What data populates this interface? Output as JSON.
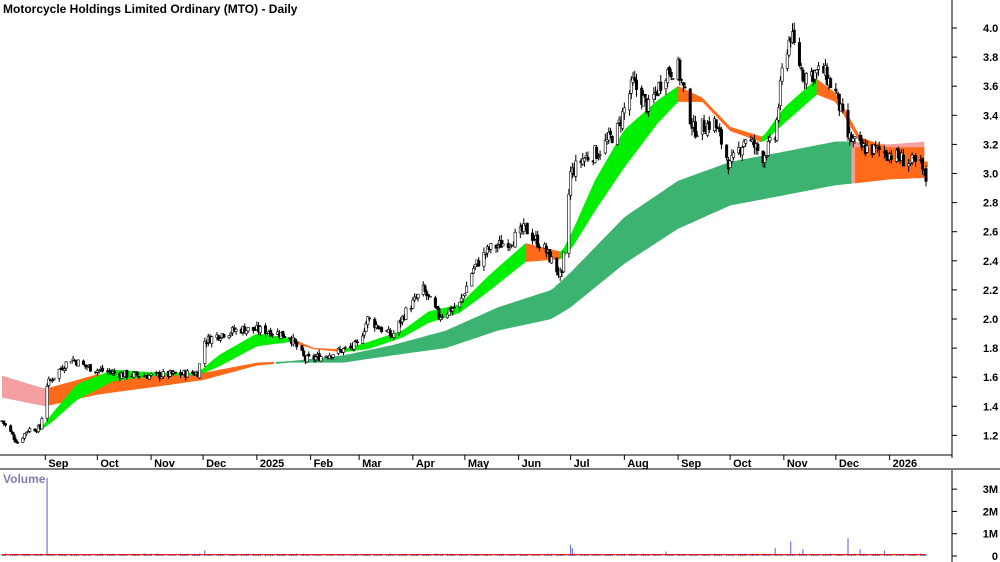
{
  "title": "Motorcycle Holdings Limited Ordinary (MTO) - Daily",
  "volume_label": "Volume",
  "colors": {
    "background": "#ffffff",
    "axis": "#000000",
    "candle": "#000000",
    "bull_short": "#00ee00",
    "bear_short": "#ff6b1a",
    "bull_long": "#3cb371",
    "bear_long_fill": "#ff6b1a",
    "bear_long_ribbon": "#f4a0a0",
    "volume_bar": "#5b5bd6",
    "volume_avg": "#d40000"
  },
  "chart_data": [
    {
      "type": "candlestick",
      "title": "Motorcycle Holdings Limited Ordinary (MTO) - Daily",
      "xlabel": "",
      "ylabel": "",
      "ylim": [
        1.05,
        4.05
      ],
      "y_ticks": [
        "1.2",
        "1.4",
        "1.6",
        "1.8",
        "2.0",
        "2.2",
        "2.4",
        "2.6",
        "2.8",
        "3.0",
        "3.2",
        "3.4",
        "3.6",
        "3.8",
        "4.0"
      ],
      "x_tick_labels": [
        "Sep",
        "Oct",
        "Nov",
        "Dec",
        "2025",
        "Feb",
        "Mar",
        "Apr",
        "May",
        "Jun",
        "Jul",
        "Aug",
        "Sep",
        "Oct",
        "Nov",
        "Dec",
        "2026"
      ],
      "x_tick_dates": [
        "2024-09-01",
        "2024-10-01",
        "2024-11-01",
        "2024-12-01",
        "2025-01-01",
        "2025-02-01",
        "2025-03-01",
        "2025-04-01",
        "2025-05-01",
        "2025-06-01",
        "2025-07-01",
        "2025-08-01",
        "2025-09-01",
        "2025-10-01",
        "2025-11-01",
        "2025-12-01",
        "2026-01-01"
      ],
      "x_range": [
        "2024-08-07",
        "2026-01-22"
      ],
      "close_path": [
        [
          "2024-08-07",
          1.3
        ],
        [
          "2024-08-12",
          1.22
        ],
        [
          "2024-08-16",
          1.15
        ],
        [
          "2024-08-22",
          1.24
        ],
        [
          "2024-08-29",
          1.25
        ],
        [
          "2024-09-02",
          1.55
        ],
        [
          "2024-09-09",
          1.65
        ],
        [
          "2024-09-16",
          1.73
        ],
        [
          "2024-09-23",
          1.68
        ],
        [
          "2024-10-01",
          1.65
        ],
        [
          "2024-10-15",
          1.62
        ],
        [
          "2024-11-01",
          1.61
        ],
        [
          "2024-11-15",
          1.62
        ],
        [
          "2024-11-28",
          1.63
        ],
        [
          "2024-12-02",
          1.85
        ],
        [
          "2024-12-12",
          1.9
        ],
        [
          "2024-12-23",
          1.93
        ],
        [
          "2025-01-08",
          1.92
        ],
        [
          "2025-01-20",
          1.88
        ],
        [
          "2025-01-29",
          1.72
        ],
        [
          "2025-02-06",
          1.74
        ],
        [
          "2025-02-18",
          1.78
        ],
        [
          "2025-02-28",
          1.82
        ],
        [
          "2025-03-06",
          2.0
        ],
        [
          "2025-03-20",
          1.88
        ],
        [
          "2025-03-28",
          2.05
        ],
        [
          "2025-04-07",
          2.2
        ],
        [
          "2025-04-16",
          2.02
        ],
        [
          "2025-04-28",
          2.1
        ],
        [
          "2025-05-06",
          2.35
        ],
        [
          "2025-05-15",
          2.48
        ],
        [
          "2025-05-29",
          2.55
        ],
        [
          "2025-06-05",
          2.62
        ],
        [
          "2025-06-16",
          2.48
        ],
        [
          "2025-06-26",
          2.28
        ],
        [
          "2025-07-01",
          3.0
        ],
        [
          "2025-07-08",
          3.1
        ],
        [
          "2025-07-17",
          3.15
        ],
        [
          "2025-07-28",
          3.3
        ],
        [
          "2025-08-06",
          3.62
        ],
        [
          "2025-08-15",
          3.45
        ],
        [
          "2025-08-25",
          3.7
        ],
        [
          "2025-09-01",
          3.72
        ],
        [
          "2025-09-10",
          3.3
        ],
        [
          "2025-09-22",
          3.35
        ],
        [
          "2025-10-01",
          3.05
        ],
        [
          "2025-10-10",
          3.25
        ],
        [
          "2025-10-20",
          3.12
        ],
        [
          "2025-10-27",
          3.25
        ],
        [
          "2025-11-01",
          3.8
        ],
        [
          "2025-11-05",
          3.95
        ],
        [
          "2025-11-12",
          3.68
        ],
        [
          "2025-11-24",
          3.7
        ],
        [
          "2025-12-01",
          3.55
        ],
        [
          "2025-12-08",
          3.25
        ],
        [
          "2025-12-15",
          3.18
        ],
        [
          "2025-12-29",
          3.15
        ],
        [
          "2026-01-08",
          3.1
        ],
        [
          "2026-01-19",
          3.05
        ],
        [
          "2026-01-22",
          2.96
        ]
      ],
      "short_ma_ribbon": [
        [
          "2024-08-29",
          1.24,
          1.24
        ],
        [
          "2024-09-05",
          1.35,
          1.3
        ],
        [
          "2024-09-19",
          1.55,
          1.45
        ],
        [
          "2024-10-10",
          1.65,
          1.58
        ],
        [
          "2024-11-05",
          1.63,
          1.62
        ],
        [
          "2024-11-28",
          1.63,
          1.62
        ],
        [
          "2024-12-10",
          1.75,
          1.68
        ],
        [
          "2025-01-01",
          1.9,
          1.82
        ],
        [
          "2025-01-20",
          1.87,
          1.85
        ],
        [
          "2025-02-03",
          1.8,
          1.8
        ],
        [
          "2025-02-20",
          1.79,
          1.78
        ],
        [
          "2025-03-06",
          1.84,
          1.8
        ],
        [
          "2025-03-26",
          1.92,
          1.88
        ],
        [
          "2025-04-10",
          2.05,
          1.98
        ],
        [
          "2025-04-28",
          2.1,
          2.05
        ],
        [
          "2025-05-15",
          2.3,
          2.2
        ],
        [
          "2025-06-05",
          2.52,
          2.4
        ],
        [
          "2025-06-26",
          2.46,
          2.42
        ],
        [
          "2025-07-02",
          2.6,
          2.5
        ],
        [
          "2025-07-15",
          2.95,
          2.75
        ],
        [
          "2025-08-01",
          3.3,
          3.05
        ],
        [
          "2025-08-20",
          3.5,
          3.35
        ],
        [
          "2025-09-01",
          3.6,
          3.5
        ],
        [
          "2025-09-15",
          3.52,
          3.5
        ],
        [
          "2025-10-01",
          3.32,
          3.3
        ],
        [
          "2025-10-20",
          3.25,
          3.22
        ],
        [
          "2025-11-01",
          3.45,
          3.35
        ],
        [
          "2025-11-20",
          3.65,
          3.55
        ],
        [
          "2025-12-01",
          3.55,
          3.5
        ],
        [
          "2025-12-15",
          3.25,
          3.22
        ],
        [
          "2026-01-22",
          3.08,
          3.05
        ]
      ],
      "long_ma_ribbon": [
        [
          "2024-08-07",
          1.61,
          1.46
        ],
        [
          "2024-09-01",
          1.52,
          1.4
        ],
        [
          "2024-10-01",
          1.62,
          1.48
        ],
        [
          "2024-11-01",
          1.61,
          1.53
        ],
        [
          "2024-12-01",
          1.63,
          1.58
        ],
        [
          "2025-01-01",
          1.7,
          1.68
        ],
        [
          "2025-01-20",
          1.71,
          1.7
        ],
        [
          "2025-02-20",
          1.75,
          1.7
        ],
        [
          "2025-03-20",
          1.82,
          1.75
        ],
        [
          "2025-04-20",
          1.92,
          1.8
        ],
        [
          "2025-05-20",
          2.08,
          1.92
        ],
        [
          "2025-06-20",
          2.2,
          2.0
        ],
        [
          "2025-07-01",
          2.32,
          2.08
        ],
        [
          "2025-08-01",
          2.7,
          2.38
        ],
        [
          "2025-09-01",
          2.95,
          2.62
        ],
        [
          "2025-10-01",
          3.08,
          2.78
        ],
        [
          "2025-11-01",
          3.15,
          2.85
        ],
        [
          "2025-12-01",
          3.22,
          2.92
        ],
        [
          "2025-12-10",
          3.22,
          2.93
        ],
        [
          "2026-01-01",
          3.2,
          2.96
        ],
        [
          "2026-01-22",
          3.22,
          2.97
        ]
      ]
    },
    {
      "type": "bar",
      "title": "Volume",
      "ylim": [
        0,
        3500000
      ],
      "y_ticks": [
        "0",
        "1M",
        "2M",
        "3M"
      ],
      "typical_volume": 60000,
      "spikes": [
        [
          "2024-09-02",
          3500000
        ],
        [
          "2024-12-02",
          250000
        ],
        [
          "2025-07-01",
          500000
        ],
        [
          "2025-07-02",
          350000
        ],
        [
          "2025-08-25",
          200000
        ],
        [
          "2025-10-27",
          350000
        ],
        [
          "2025-11-01",
          1050000
        ],
        [
          "2025-11-05",
          650000
        ],
        [
          "2025-11-12",
          300000
        ],
        [
          "2025-12-08",
          800000
        ],
        [
          "2025-12-15",
          300000
        ],
        [
          "2025-12-29",
          250000
        ]
      ],
      "average_level": 60000
    }
  ]
}
